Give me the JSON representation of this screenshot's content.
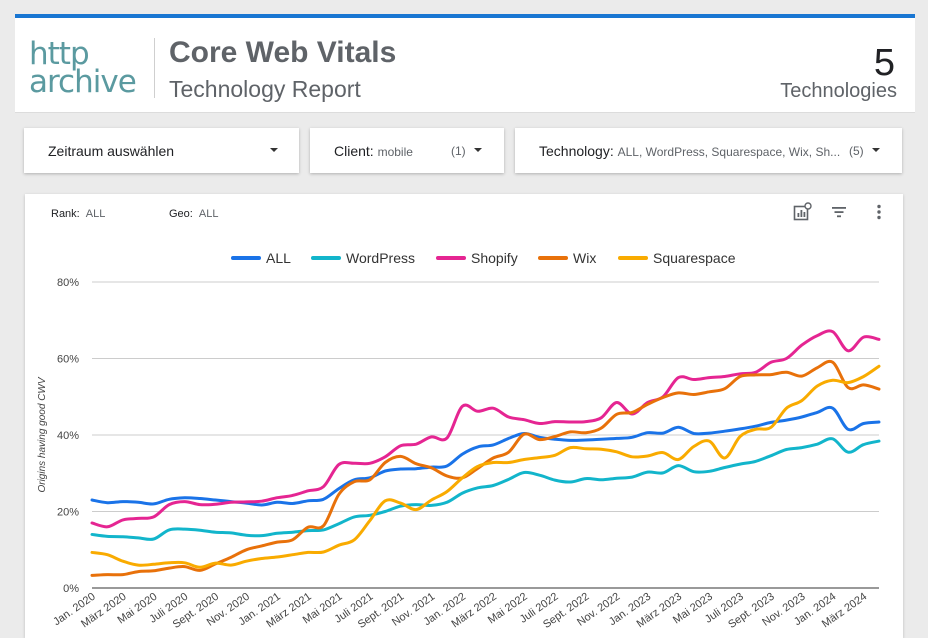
{
  "header": {
    "logo_line1": "http",
    "logo_line2": "archive",
    "title": "Core Web Vitals",
    "subtitle": "Technology Report",
    "count": "5",
    "count_label": "Technologies"
  },
  "filters": {
    "period_label": "Zeitraum auswählen",
    "client_label": "Client:",
    "client_value": "mobile",
    "client_count": "(1)",
    "technology_label": "Technology:",
    "technology_value": "ALL, WordPress, Squarespace, Wix, Sh...",
    "technology_count": "(5)"
  },
  "card": {
    "rank_label": "Rank:",
    "rank_value": "ALL",
    "geo_label": "Geo:",
    "geo_value": "ALL",
    "icons": [
      "chart-settings-icon",
      "filter-icon",
      "more-vert-icon"
    ]
  },
  "colors": {
    "ALL": "#1a73e8",
    "WordPress": "#12b5cb",
    "Shopify": "#e52592",
    "Wix": "#e8710a",
    "Squarespace": "#f9ab00",
    "accent": "#1976d2"
  },
  "chart_data": {
    "type": "line",
    "ylabel": "Origins having good CWV",
    "ylim": [
      0,
      80
    ],
    "yticks": [
      "0%",
      "20%",
      "40%",
      "60%",
      "80%"
    ],
    "x_tick_labels": [
      "Jan. 2020",
      "März 2020",
      "Mai 2020",
      "Juli 2020",
      "Sept. 2020",
      "Nov. 2020",
      "Jan. 2021",
      "März 2021",
      "Mai 2021",
      "Juli 2021",
      "Sept. 2021",
      "Nov. 2021",
      "Jan. 2022",
      "März 2022",
      "Mai 2022",
      "Juli 2022",
      "Sept. 2022",
      "Nov. 2022",
      "Jan. 2023",
      "März 2023",
      "Mai 2023",
      "Juli 2023",
      "Sept. 2023",
      "Nov. 2023",
      "Jan. 2024",
      "März 2024"
    ],
    "x_months": [
      "Jan. 2020",
      "Feb. 2020",
      "März 2020",
      "Apr. 2020",
      "Mai 2020",
      "Juni 2020",
      "Juli 2020",
      "Aug. 2020",
      "Sept. 2020",
      "Okt. 2020",
      "Nov. 2020",
      "Dez. 2020",
      "Jan. 2021",
      "Feb. 2021",
      "März 2021",
      "Apr. 2021",
      "Mai 2021",
      "Juni 2021",
      "Juli 2021",
      "Aug. 2021",
      "Sept. 2021",
      "Okt. 2021",
      "Nov. 2021",
      "Dez. 2021",
      "Jan. 2022",
      "Feb. 2022",
      "März 2022",
      "Apr. 2022",
      "Mai 2022",
      "Juni 2022",
      "Juli 2022",
      "Aug. 2022",
      "Sept. 2022",
      "Okt. 2022",
      "Nov. 2022",
      "Dez. 2022",
      "Jan. 2023",
      "Feb. 2023",
      "März 2023",
      "Apr. 2023",
      "Mai 2023",
      "Juni 2023",
      "Juli 2023",
      "Aug. 2023",
      "Sept. 2023",
      "Okt. 2023",
      "Nov. 2023",
      "Dez. 2023",
      "Jan. 2024",
      "Feb. 2024",
      "März 2024",
      "Apr. 2024"
    ],
    "legend": [
      "ALL",
      "WordPress",
      "Shopify",
      "Wix",
      "Squarespace"
    ],
    "series": [
      {
        "name": "ALL",
        "values": [
          23,
          22.3,
          22.6,
          22.4,
          22,
          23.2,
          23.6,
          23.4,
          23,
          22.6,
          22.2,
          21.7,
          22.4,
          22.1,
          22.8,
          23.2,
          26,
          28.3,
          28.8,
          30.6,
          31.1,
          31.2,
          31.6,
          31.9,
          35,
          36.9,
          37.4,
          39.1,
          40.4,
          39.4,
          38.9,
          38.6,
          38.7,
          38.9,
          39.1,
          39.4,
          40.6,
          40.5,
          42,
          40.4,
          40.5,
          41,
          41.6,
          42.3,
          43.3,
          43.9,
          44.7,
          45.9,
          47,
          41.5,
          43,
          43.4
        ]
      },
      {
        "name": "WordPress",
        "values": [
          14,
          13.5,
          13.4,
          13.1,
          12.8,
          15.2,
          15.4,
          15.1,
          14.6,
          14.4,
          13.8,
          13.7,
          14.3,
          14.6,
          15,
          15.2,
          16.8,
          18.6,
          19,
          20,
          21.4,
          21.8,
          21.6,
          22.4,
          24.8,
          26.2,
          26.8,
          28.4,
          30.2,
          29.5,
          28.2,
          27.7,
          28.6,
          28.3,
          28.7,
          29,
          30.3,
          30.1,
          32,
          30.4,
          30.5,
          31.5,
          32.4,
          33.1,
          34.6,
          36.2,
          36.7,
          37.6,
          39,
          35.5,
          37.5,
          38.4
        ]
      },
      {
        "name": "Shopify",
        "values": [
          17,
          16,
          17.8,
          18.2,
          18.6,
          21.8,
          22.6,
          21.8,
          21.9,
          22.4,
          22.5,
          22.7,
          23.6,
          24.2,
          25.4,
          26.5,
          32.3,
          32.6,
          32.6,
          34.3,
          37.2,
          37.6,
          39.5,
          39.2,
          47.5,
          46.2,
          47,
          44.7,
          44,
          43,
          43.5,
          43.4,
          43.5,
          44.5,
          48.5,
          45.5,
          48.5,
          50,
          55,
          54.5,
          55,
          55.3,
          56,
          56.4,
          59,
          60,
          63.5,
          66,
          67,
          62,
          65.6,
          65
        ]
      },
      {
        "name": "Wix",
        "values": [
          3.3,
          3.5,
          3.5,
          4.3,
          4.5,
          5.2,
          5.6,
          4.6,
          6.3,
          8,
          10,
          11,
          12,
          12.6,
          15.9,
          16.3,
          24.5,
          27.8,
          28.3,
          32.8,
          34.4,
          32.5,
          31.4,
          29.3,
          28.8,
          31.3,
          34,
          35.5,
          40.2,
          38.8,
          39.6,
          40.8,
          40.6,
          41.8,
          45.4,
          45.9,
          48,
          49.8,
          51,
          50.6,
          51.3,
          52.1,
          55.3,
          55.7,
          55.8,
          56.4,
          55.4,
          57.6,
          59,
          52.4,
          53.1,
          52
        ]
      },
      {
        "name": "Squarespace",
        "values": [
          9.3,
          8.7,
          7,
          6,
          6.2,
          6.6,
          6.6,
          5.4,
          6.5,
          6,
          7,
          7.7,
          8.1,
          8.7,
          9.3,
          9.4,
          11.2,
          12.6,
          17.6,
          22.8,
          22.2,
          20.5,
          23,
          25.2,
          28.8,
          31.8,
          32.8,
          32.8,
          33.6,
          34.1,
          34.7,
          36.7,
          36.4,
          36.3,
          35.6,
          34.3,
          34.5,
          35.4,
          33.6,
          37,
          38.4,
          34,
          39.6,
          41.5,
          42,
          47,
          49,
          52.8,
          54.3,
          53.7,
          55.3,
          58
        ]
      }
    ]
  }
}
